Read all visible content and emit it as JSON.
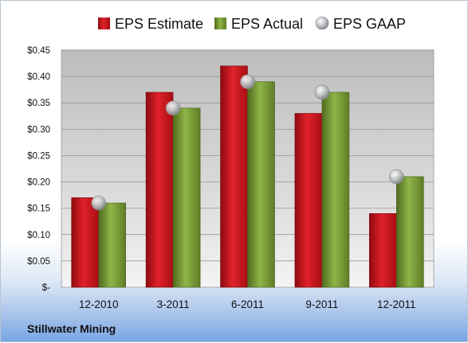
{
  "chart_data": {
    "type": "bar",
    "categories": [
      "12-2010",
      "3-2011",
      "6-2011",
      "9-2011",
      "12-2011"
    ],
    "series": [
      {
        "name": "EPS Estimate",
        "values": [
          0.17,
          0.37,
          0.42,
          0.33,
          0.14
        ],
        "color": "#d9141d",
        "mark": "bar"
      },
      {
        "name": "EPS Actual",
        "values": [
          0.16,
          0.34,
          0.39,
          0.37,
          0.21
        ],
        "color": "#7fa23a",
        "mark": "bar"
      },
      {
        "name": "EPS GAAP",
        "values": [
          0.16,
          0.34,
          0.39,
          0.37,
          0.21
        ],
        "color": "#b9bcc0",
        "mark": "point"
      }
    ],
    "yticks": [
      {
        "value": 0,
        "label": "$-"
      },
      {
        "value": 0.05,
        "label": "$0.05"
      },
      {
        "value": 0.1,
        "label": "$0.10"
      },
      {
        "value": 0.15,
        "label": "$0.15"
      },
      {
        "value": 0.2,
        "label": "$0.20"
      },
      {
        "value": 0.25,
        "label": "$0.25"
      },
      {
        "value": 0.3,
        "label": "$0.30"
      },
      {
        "value": 0.35,
        "label": "$0.35"
      },
      {
        "value": 0.4,
        "label": "$0.40"
      },
      {
        "value": 0.45,
        "label": "$0.45"
      }
    ],
    "ylim": [
      0,
      0.45
    ],
    "grid": true,
    "legend": "top",
    "company": "Stillwater Mining"
  }
}
